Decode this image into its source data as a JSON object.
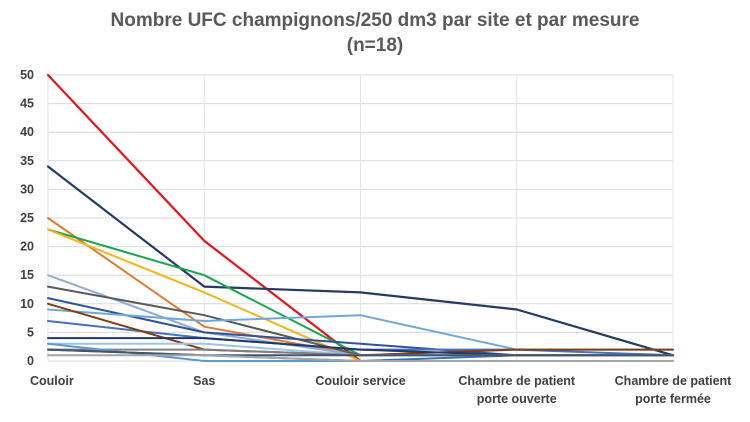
{
  "chart_data": {
    "type": "line",
    "title_line1": "Nombre UFC champignons/250 dm3 par site et par mesure",
    "title_line2": "(n=18)",
    "categories": [
      [
        "Couloir"
      ],
      [
        "Sas"
      ],
      [
        "Couloir service"
      ],
      [
        "Chambre de patient",
        "porte ouverte"
      ],
      [
        "Chambre de patient",
        "porte fermée"
      ]
    ],
    "ylim": [
      0,
      50
    ],
    "yticks": [
      0,
      5,
      10,
      15,
      20,
      25,
      30,
      35,
      40,
      45,
      50
    ],
    "grid": true,
    "series": [
      {
        "color": "#e8141a",
        "width": 2.2,
        "values": [
          50,
          21,
          0,
          null,
          null
        ]
      },
      {
        "color": "#243b66",
        "width": 2.2,
        "values": [
          34,
          13,
          12,
          9,
          1
        ]
      },
      {
        "color": "#e07b2f",
        "width": 2.0,
        "values": [
          25,
          6,
          1,
          null,
          null
        ]
      },
      {
        "color": "#1aa64a",
        "width": 2.0,
        "values": [
          23,
          15,
          1,
          null,
          null
        ]
      },
      {
        "color": "#f2b51c",
        "width": 2.0,
        "values": [
          23,
          12,
          0,
          null,
          null
        ]
      },
      {
        "color": "#8faadc",
        "width": 2.0,
        "values": [
          15,
          5,
          1,
          null,
          null
        ]
      },
      {
        "color": "#5a5a5a",
        "width": 2.0,
        "values": [
          13,
          8,
          1,
          null,
          null
        ]
      },
      {
        "color": "#2f5597",
        "width": 2.0,
        "values": [
          11,
          5,
          3,
          1,
          1
        ]
      },
      {
        "color": "#6fa8dc",
        "width": 2.0,
        "values": [
          9,
          7,
          8,
          2,
          2
        ]
      },
      {
        "color": "#4472c4",
        "width": 2.0,
        "values": [
          7,
          4,
          2,
          2,
          1
        ]
      },
      {
        "color": "#843c0c",
        "width": 2.0,
        "values": [
          10,
          2,
          1,
          2,
          2
        ]
      },
      {
        "color": "#1f3864",
        "width": 2.0,
        "values": [
          4,
          4,
          2,
          1,
          1
        ]
      },
      {
        "color": "#9dc3e6",
        "width": 2.0,
        "values": [
          3,
          3,
          1,
          1,
          1
        ]
      },
      {
        "color": "#2e75b6",
        "width": 2.0,
        "values": [
          2,
          1,
          0,
          1,
          1
        ]
      },
      {
        "color": "#7f7f7f",
        "width": 2.0,
        "values": [
          2,
          2,
          1,
          1,
          1
        ]
      },
      {
        "color": "#5b9bd5",
        "width": 2.0,
        "values": [
          3,
          0,
          0,
          0,
          0
        ]
      },
      {
        "color": "#44546a",
        "width": 2.0,
        "values": [
          2,
          1,
          1,
          1,
          1
        ]
      },
      {
        "color": "#a5a5a5",
        "width": 2.0,
        "values": [
          1,
          1,
          0,
          0,
          0
        ]
      }
    ]
  }
}
